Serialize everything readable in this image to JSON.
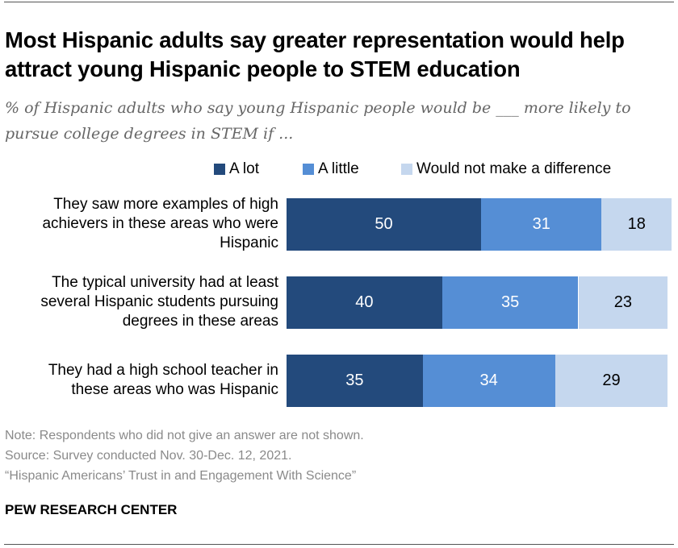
{
  "title": "Most Hispanic adults say greater representation would help attract young Hispanic people to STEM education",
  "subtitle": "% of Hispanic adults who say young Hispanic people would be ___ more likely to pursue college degrees in STEM if ...",
  "chart_data": {
    "type": "bar",
    "orientation": "horizontal-stacked",
    "categories": [
      "They saw more examples of high achievers in these areas who were Hispanic",
      "The typical university had at least several Hispanic students pursuing degrees in these areas",
      "They had a high school teacher in these areas who was Hispanic"
    ],
    "series": [
      {
        "name": "A lot",
        "color": "#234a7c",
        "values": [
          50,
          40,
          35
        ]
      },
      {
        "name": "A little",
        "color": "#558ed5",
        "values": [
          31,
          35,
          34
        ]
      },
      {
        "name": "Would not make a difference",
        "color": "#c5d7ee",
        "values": [
          18,
          23,
          29
        ]
      }
    ],
    "legend": "top"
  },
  "notes": {
    "note": "Note: Respondents who did not give an answer are not shown.",
    "source": "Source: Survey conducted Nov. 30-Dec. 12, 2021.",
    "report": "“Hispanic Americans’ Trust in and Engagement With Science”"
  },
  "brand": "PEW RESEARCH CENTER"
}
